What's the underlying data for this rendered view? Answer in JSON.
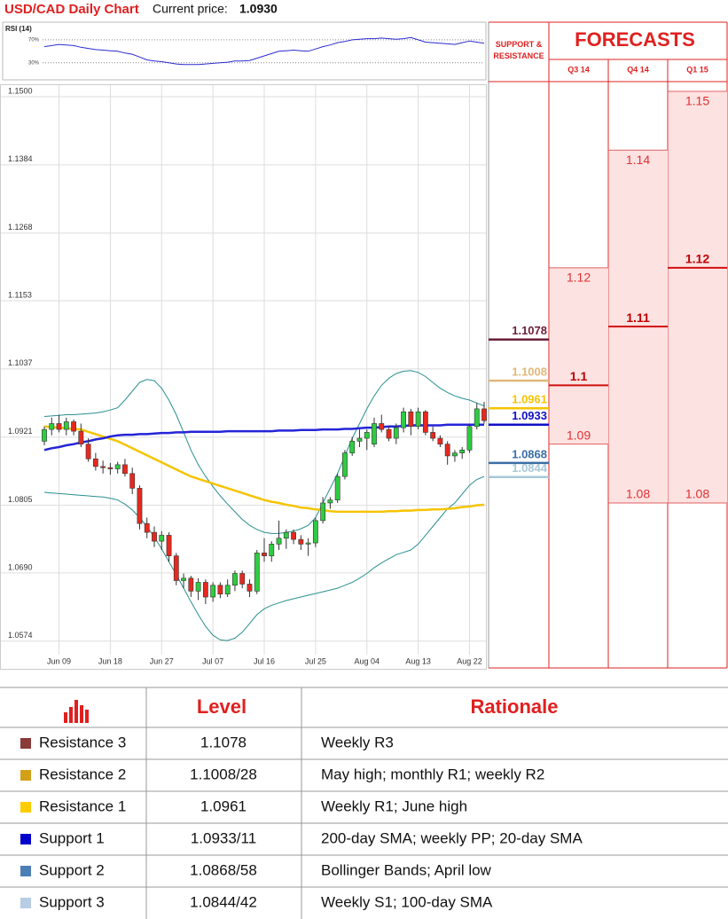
{
  "header": {
    "title": "USD/CAD Daily Chart",
    "price_label": "Current price:",
    "price": "1.0930"
  },
  "chart_data": [
    {
      "type": "line",
      "title": "RSI (14)",
      "color": "#2b2bd0",
      "values": [
        58,
        60,
        62,
        61,
        60,
        57,
        55,
        53,
        52,
        51,
        50,
        47,
        45,
        40,
        35,
        33,
        32,
        30,
        28,
        27,
        27,
        27,
        28,
        29,
        30,
        31,
        33,
        33,
        34,
        38,
        42,
        46,
        50,
        51,
        52,
        51,
        50,
        54,
        58,
        61,
        65,
        67,
        70,
        71,
        72,
        72,
        73,
        72,
        71,
        72,
        74,
        70,
        66,
        65,
        64,
        63,
        62,
        65,
        68,
        66,
        64
      ],
      "ylim": [
        8,
        93
      ],
      "yticks": [
        {
          "value": 30,
          "label": "30%"
        },
        {
          "value": 70,
          "label": "70%"
        }
      ]
    },
    {
      "type": "candlestick",
      "x": [
        null,
        null,
        "Jun 09",
        null,
        null,
        null,
        null,
        null,
        null,
        "Jun 18",
        null,
        null,
        null,
        null,
        null,
        null,
        "Jun 27",
        null,
        null,
        null,
        null,
        null,
        null,
        "Jul 07",
        null,
        null,
        null,
        null,
        null,
        null,
        "Jul 16",
        null,
        null,
        null,
        null,
        null,
        null,
        "Jul 25",
        null,
        null,
        null,
        null,
        null,
        null,
        "Aug 04",
        null,
        null,
        null,
        null,
        null,
        null,
        "Aug 13",
        null,
        null,
        null,
        null,
        null,
        null,
        "Aug 22",
        null,
        null
      ],
      "open": [
        1.0905,
        1.0925,
        1.0935,
        1.0925,
        1.0938,
        1.0922,
        1.09,
        1.0875,
        1.0862,
        1.086,
        1.0858,
        1.0865,
        1.085,
        1.0825,
        1.0765,
        1.075,
        1.0735,
        1.0745,
        1.071,
        1.0668,
        1.0672,
        1.065,
        1.0665,
        1.064,
        1.066,
        1.0645,
        1.066,
        1.068,
        1.0662,
        1.065,
        1.0715,
        1.071,
        1.073,
        1.074,
        1.075,
        1.0738,
        1.073,
        1.0732,
        1.077,
        1.08,
        1.0805,
        1.0845,
        1.0885,
        1.0905,
        1.091,
        1.09,
        1.0935,
        1.0925,
        1.091,
        1.0928,
        1.0955,
        1.093,
        1.0955,
        1.092,
        1.091,
        1.09,
        1.088,
        1.0885,
        1.089,
        1.093,
        1.096
      ],
      "high": [
        1.093,
        1.0945,
        1.095,
        1.0945,
        1.0942,
        1.0935,
        1.091,
        1.0885,
        1.0872,
        1.0868,
        1.087,
        1.0875,
        1.086,
        1.083,
        1.0775,
        1.076,
        1.0752,
        1.075,
        1.0715,
        1.068,
        1.0676,
        1.0672,
        1.067,
        1.0665,
        1.0665,
        1.067,
        1.0685,
        1.0685,
        1.067,
        1.072,
        1.074,
        1.0735,
        1.077,
        1.0755,
        1.0755,
        1.0745,
        1.074,
        1.0775,
        1.081,
        1.081,
        1.085,
        1.089,
        1.0912,
        1.0925,
        1.0925,
        1.0945,
        1.095,
        1.093,
        1.0935,
        1.0962,
        1.096,
        1.0962,
        1.0958,
        1.093,
        1.0915,
        1.0905,
        1.089,
        1.0895,
        1.0935,
        1.097,
        1.0972
      ],
      "low": [
        1.0898,
        1.0915,
        1.092,
        1.0915,
        1.0915,
        1.0895,
        1.087,
        1.0855,
        1.085,
        1.0848,
        1.085,
        1.0845,
        1.0815,
        1.0755,
        1.074,
        1.0725,
        1.072,
        1.07,
        1.066,
        1.0655,
        1.064,
        1.0635,
        1.0628,
        1.0632,
        1.0638,
        1.064,
        1.065,
        1.0655,
        1.064,
        1.0645,
        1.07,
        1.07,
        1.072,
        1.0722,
        1.073,
        1.072,
        1.071,
        1.0725,
        1.0765,
        1.079,
        1.08,
        1.084,
        1.088,
        1.0895,
        1.089,
        1.0895,
        1.092,
        1.0905,
        1.09,
        1.092,
        1.0915,
        1.0925,
        1.0915,
        1.0905,
        1.0895,
        1.0865,
        1.087,
        1.0875,
        1.0885,
        1.0925,
        1.0935
      ],
      "close": [
        1.0925,
        1.0935,
        1.0925,
        1.0938,
        1.0922,
        1.09,
        1.0875,
        1.0862,
        1.086,
        1.0858,
        1.0865,
        1.085,
        1.0825,
        1.0765,
        1.075,
        1.0735,
        1.0745,
        1.071,
        1.0668,
        1.0672,
        1.065,
        1.0665,
        1.064,
        1.066,
        1.0645,
        1.066,
        1.068,
        1.0662,
        1.065,
        1.0715,
        1.071,
        1.073,
        1.074,
        1.075,
        1.0738,
        1.073,
        1.0732,
        1.077,
        1.08,
        1.0805,
        1.0845,
        1.0885,
        1.0905,
        1.091,
        1.092,
        1.0935,
        1.0925,
        1.091,
        1.0928,
        1.0955,
        1.093,
        1.0955,
        1.092,
        1.091,
        1.09,
        1.088,
        1.0885,
        1.089,
        1.093,
        1.096,
        1.094
      ],
      "up_color": "#2ecc40",
      "down_color": "#e8281e",
      "series": [
        {
          "color": "#2a8f8f",
          "width": 1,
          "values": [
            1.0947,
            1.0948,
            1.0949,
            1.095,
            1.095,
            1.0951,
            1.0952,
            1.0953,
            1.0955,
            1.0958,
            1.0962,
            1.0975,
            1.099,
            1.1005,
            1.101,
            1.1008,
            1.0995,
            1.0975,
            1.095,
            1.092,
            1.089,
            1.0865,
            1.0845,
            1.0828,
            1.0812,
            1.0798,
            1.0785,
            1.0772,
            1.0762,
            1.0755,
            1.075,
            1.0748,
            1.0748,
            1.075,
            1.0752,
            1.0756,
            1.0762,
            1.0775,
            1.08,
            1.0825,
            1.085,
            1.088,
            1.091,
            1.0935,
            1.096,
            1.0982,
            1.1,
            1.1012,
            1.102,
            1.1024,
            1.1025,
            1.1022,
            1.1015,
            1.1005,
            1.0995,
            1.0988,
            1.0982,
            1.0978,
            1.0975,
            1.097,
            1.0965
          ]
        },
        {
          "color": "#2a8f8f",
          "width": 1,
          "values": [
            1.0818,
            1.0817,
            1.0816,
            1.0815,
            1.0814,
            1.0813,
            1.0812,
            1.0811,
            1.081,
            1.0808,
            1.0805,
            1.0798,
            1.0788,
            1.0775,
            1.076,
            1.0742,
            1.0722,
            1.07,
            1.0678,
            1.0655,
            1.0632,
            1.061,
            1.059,
            1.0575,
            1.0567,
            1.0566,
            1.057,
            1.058,
            1.0595,
            1.061,
            1.062,
            1.0626,
            1.063,
            1.0634,
            1.0637,
            1.064,
            1.0643,
            1.0646,
            1.0649,
            1.0652,
            1.0655,
            1.066,
            1.0665,
            1.0672,
            1.068,
            1.069,
            1.0698,
            1.0705,
            1.0712,
            1.0716,
            1.072,
            1.073,
            1.0745,
            1.076,
            1.0775,
            1.079,
            1.08,
            1.0815,
            1.083,
            1.084,
            1.0845
          ]
        },
        {
          "color": "#f5c400",
          "width": 2.5,
          "values": [
            1.093,
            1.0929,
            1.0928,
            1.0927,
            1.0926,
            1.0925,
            1.0921,
            1.0917,
            1.0913,
            1.0909,
            1.0905,
            1.0899,
            1.0893,
            1.0887,
            1.0881,
            1.0875,
            1.0869,
            1.0863,
            1.0857,
            1.0851,
            1.0845,
            1.0841,
            1.0837,
            1.0833,
            1.0829,
            1.0825,
            1.0821,
            1.0817,
            1.0813,
            1.0809,
            1.0805,
            1.0802,
            1.08,
            1.0797,
            1.0795,
            1.0792,
            1.0791,
            1.0789,
            1.0788,
            1.0786,
            1.0785,
            1.0785,
            1.0785,
            1.0785,
            1.0785,
            1.0785,
            1.0785,
            1.0786,
            1.0786,
            1.0787,
            1.0787,
            1.0788,
            1.0788,
            1.0789,
            1.0789,
            1.079,
            1.0791,
            1.0793,
            1.0794,
            1.0796,
            1.0797
          ]
        },
        {
          "color": "#2424d8",
          "width": 2.5,
          "values": [
            1.089,
            1.0893,
            1.0895,
            1.0898,
            1.09,
            1.0903,
            1.0905,
            1.0908,
            1.091,
            1.0913,
            1.0915,
            1.0916,
            1.0916,
            1.0917,
            1.0917,
            1.0918,
            1.0919,
            1.0919,
            1.092,
            1.092,
            1.0921,
            1.0921,
            1.0921,
            1.0921,
            1.0921,
            1.0922,
            1.0922,
            1.0922,
            1.0922,
            1.0922,
            1.0922,
            1.0922,
            1.0923,
            1.0923,
            1.0923,
            1.0924,
            1.0924,
            1.0924,
            1.0925,
            1.0925,
            1.0925,
            1.0926,
            1.0926,
            1.0927,
            1.0928,
            1.0928,
            1.0929,
            1.093,
            1.093,
            1.0931,
            1.0932,
            1.0932,
            1.0932,
            1.0932,
            1.0932,
            1.0933,
            1.0933,
            1.0933,
            1.0933,
            1.0933,
            1.0933
          ]
        }
      ],
      "ylim": [
        1.0542,
        1.1512
      ],
      "yticks": [
        {
          "value": 1.15,
          "label": "1.1500"
        },
        1.1384,
        1.1268,
        1.1153,
        1.1037,
        1.0921,
        1.0805,
        {
          "value": 1.069,
          "label": "1.0690"
        },
        1.0574
      ],
      "grid": true
    },
    {
      "type": "levels",
      "title": "SUPPORT & RESISTANCE",
      "ylim": [
        1.0542,
        1.1512
      ],
      "values": [
        1.1078,
        1.1008,
        1.0961,
        1.0933,
        1.0868,
        1.0844
      ],
      "colors": [
        "#6b1e3a",
        "#e0b878",
        "#f5c400",
        "#1010c8",
        "#3b6ea5",
        "#a8c8d8"
      ]
    },
    {
      "type": "range",
      "title": "FORECASTS",
      "ylim": [
        1.0542,
        1.1512
      ],
      "color": "#e02020",
      "categories": [
        "Q3 14",
        "Q4 14",
        "Q1 15"
      ],
      "high": [
        1.12,
        1.14,
        1.15
      ],
      "low": [
        1.09,
        1.08,
        1.08
      ],
      "forecast": [
        1.1,
        1.11,
        1.12
      ]
    }
  ],
  "table": {
    "header": [
      "Level",
      "Rationale"
    ],
    "rows": [
      {
        "name": "Resistance 3",
        "color": "#8b3a3a",
        "level": "1.1078",
        "rationale": "Weekly R3"
      },
      {
        "name": "Resistance 2",
        "color": "#d4a017",
        "level": "1.1008/28",
        "rationale": "May high; monthly R1; weekly R2"
      },
      {
        "name": "Resistance 1",
        "color": "#ffcc00",
        "level": "1.0961",
        "rationale": "Weekly R1; June high"
      },
      {
        "name": "Support 1",
        "color": "#0000cc",
        "level": "1.0933/11",
        "rationale": "200-day SMA; weekly PP; 20-day SMA"
      },
      {
        "name": "Support 2",
        "color": "#4a7fb5",
        "level": "1.0868/58",
        "rationale": "Bollinger Bands; April low"
      },
      {
        "name": "Support 3",
        "color": "#b8cce4",
        "level": "1.0844/42",
        "rationale": "Weekly S1; 100-day SMA"
      }
    ]
  }
}
